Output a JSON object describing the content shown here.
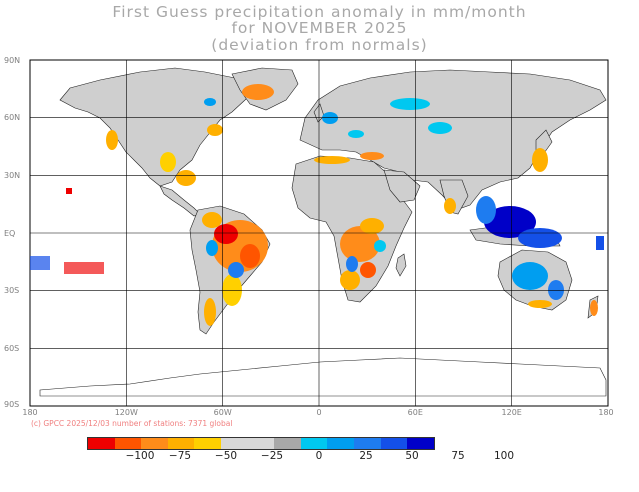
{
  "title": {
    "line1": "First Guess precipitation anomaly in mm/month",
    "line2": "for NOVEMBER 2025",
    "line3": "(deviation from normals)"
  },
  "lat_labels": [
    "90N",
    "60N",
    "30N",
    "EQ",
    "30S",
    "60S",
    "90S"
  ],
  "lon_labels": [
    "180",
    "120W",
    "60W",
    "0",
    "60E",
    "120E",
    "180"
  ],
  "credit": "(c) GPCC 2025/12/03 number of stations: 7371 global",
  "colorbar": {
    "colors": [
      "#ee0000",
      "#ff5500",
      "#ff8c1a",
      "#ffb000",
      "#ffd000",
      "#d8d8d8",
      "#d8d8d8",
      "#a8a8a8",
      "#00c8f0",
      "#009ef0",
      "#1e7cf0",
      "#1450e8",
      "#0000c8"
    ],
    "labels": [
      "−100",
      "−75",
      "−50",
      "−25",
      "0",
      "25",
      "50",
      "75",
      "100"
    ]
  }
}
